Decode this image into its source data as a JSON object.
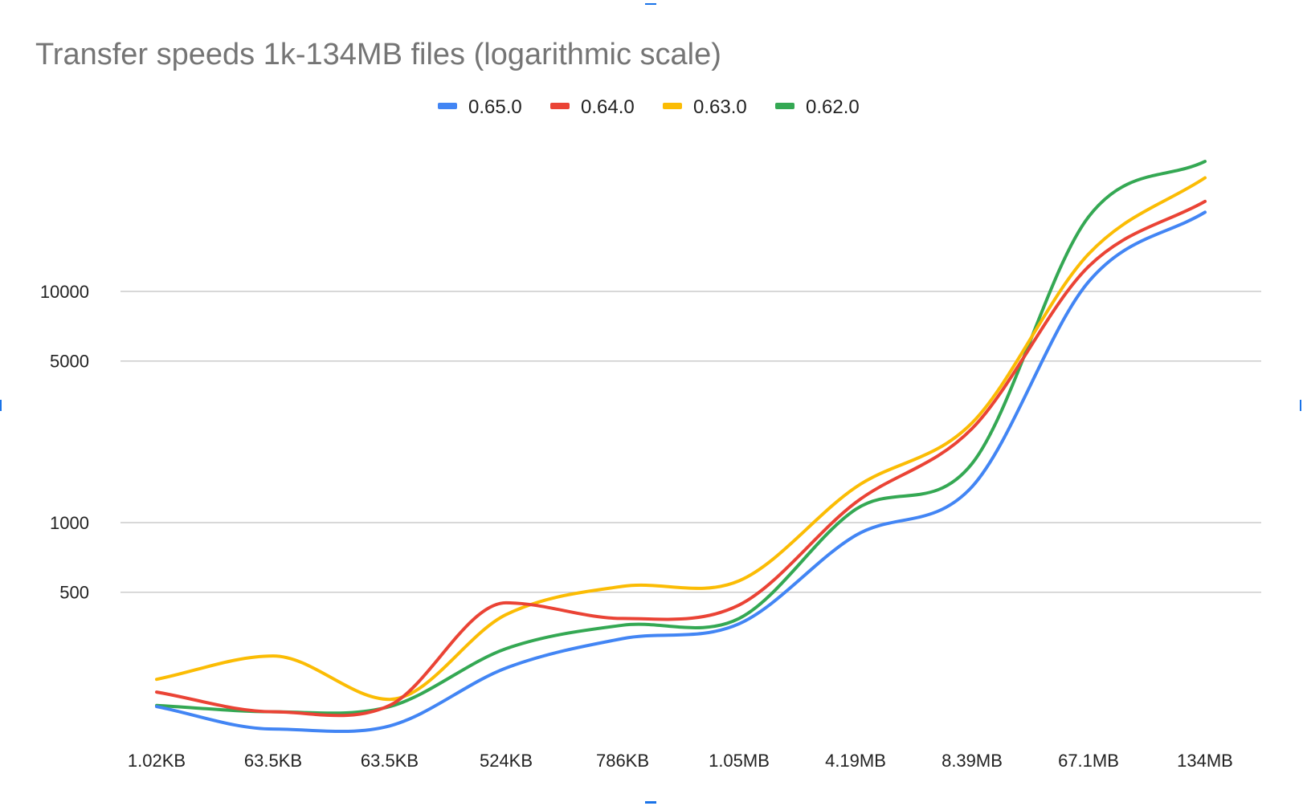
{
  "chart_data": {
    "type": "line",
    "title": "Transfer speeds 1k-134MB files (logarithmic scale)",
    "xlabel": "",
    "ylabel": "",
    "yscale": "log",
    "ylim": [
      120,
      45000
    ],
    "yticks": [
      500,
      1000,
      5000,
      10000
    ],
    "ytick_labels": [
      "500",
      "1000",
      "5000",
      "10000"
    ],
    "grid": true,
    "legend": "top",
    "categories": [
      "1.02KB",
      "63.5KB",
      "63.5KB",
      "524KB",
      "786KB",
      "1.05MB",
      "4.19MB",
      "8.39MB",
      "67.1MB",
      "134MB"
    ],
    "series": [
      {
        "name": "0.65.0",
        "color": "#4285f4",
        "values": [
          160,
          128,
          132,
          235,
          315,
          365,
          880,
          1430,
          11000,
          22000
        ]
      },
      {
        "name": "0.64.0",
        "color": "#ea4335",
        "values": [
          185,
          152,
          162,
          450,
          385,
          440,
          1220,
          2550,
          12800,
          24500
        ]
      },
      {
        "name": "0.63.0",
        "color": "#fbbc04",
        "values": [
          210,
          265,
          172,
          400,
          530,
          560,
          1420,
          2700,
          14500,
          31000
        ]
      },
      {
        "name": "0.62.0",
        "color": "#34a853",
        "values": [
          162,
          152,
          160,
          285,
          360,
          385,
          1140,
          1800,
          21000,
          36500
        ]
      }
    ]
  }
}
